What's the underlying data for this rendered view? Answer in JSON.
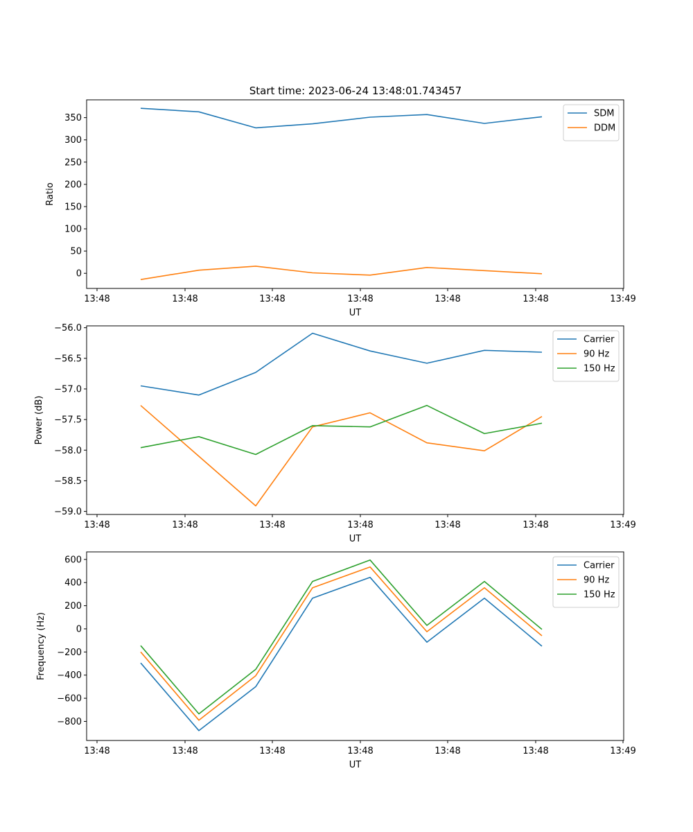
{
  "figure": {
    "title": "Start time: 2023-06-24 13:48:01.743457"
  },
  "chart_data": [
    {
      "type": "line",
      "title": "Start time: 2023-06-24 13:48:01.743457",
      "xlabel": "UT",
      "ylabel": "Ratio",
      "x_tick_labels": [
        "13:48",
        "13:48",
        "13:48",
        "13:48",
        "13:48",
        "13:48",
        "13:49"
      ],
      "y_ticks": [
        0,
        50,
        100,
        150,
        200,
        250,
        300,
        350
      ],
      "y_tick_labels": [
        "0",
        "50",
        "100",
        "150",
        "200",
        "250",
        "300",
        "350"
      ],
      "ylim": [
        -34,
        390
      ],
      "grid": false,
      "legend_position": "top-right",
      "series": [
        {
          "name": "SDM",
          "color": "#1f77b4",
          "values": [
            371,
            363,
            327,
            336,
            351,
            357,
            337,
            352
          ]
        },
        {
          "name": "DDM",
          "color": "#ff7f0e",
          "values": [
            -14,
            7,
            16,
            1,
            -4,
            13,
            6,
            -1
          ]
        }
      ]
    },
    {
      "type": "line",
      "title": "",
      "xlabel": "UT",
      "ylabel": "Power (dB)",
      "x_tick_labels": [
        "13:48",
        "13:48",
        "13:48",
        "13:48",
        "13:48",
        "13:48",
        "13:49"
      ],
      "y_ticks": [
        -59.0,
        -58.5,
        -58.0,
        -57.5,
        -57.0,
        -56.5,
        -56.0
      ],
      "y_tick_labels": [
        "−59.0",
        "−58.5",
        "−58.0",
        "−57.5",
        "−57.0",
        "−56.5",
        "−56.0"
      ],
      "ylim": [
        -59.05,
        -55.97
      ],
      "grid": false,
      "legend_position": "top-right",
      "series": [
        {
          "name": "Carrier",
          "color": "#1f77b4",
          "values": [
            -56.95,
            -57.1,
            -56.73,
            -56.09,
            -56.38,
            -56.58,
            -56.37,
            -56.4
          ]
        },
        {
          "name": "90 Hz",
          "color": "#ff7f0e",
          "values": [
            -57.27,
            -58.1,
            -58.91,
            -57.62,
            -57.39,
            -57.88,
            -58.01,
            -57.45
          ]
        },
        {
          "name": "150 Hz",
          "color": "#2ca02c",
          "values": [
            -57.96,
            -57.78,
            -58.07,
            -57.6,
            -57.62,
            -57.27,
            -57.73,
            -57.56
          ]
        }
      ]
    },
    {
      "type": "line",
      "title": "",
      "xlabel": "UT",
      "ylabel": "Frequency (Hz)",
      "x_tick_labels": [
        "13:48",
        "13:48",
        "13:48",
        "13:48",
        "13:48",
        "13:48",
        "13:49"
      ],
      "y_ticks": [
        -800,
        -600,
        -400,
        -200,
        0,
        200,
        400,
        600
      ],
      "y_tick_labels": [
        "−800",
        "−600",
        "−400",
        "−200",
        "0",
        "200",
        "400",
        "600"
      ],
      "ylim": [
        -965,
        665
      ],
      "grid": false,
      "legend_position": "top-right",
      "series": [
        {
          "name": "Carrier",
          "color": "#1f77b4",
          "values": [
            -295,
            -880,
            -500,
            265,
            445,
            -115,
            265,
            -150
          ]
        },
        {
          "name": "90 Hz",
          "color": "#ff7f0e",
          "values": [
            -200,
            -790,
            -405,
            355,
            535,
            -25,
            355,
            -60
          ]
        },
        {
          "name": "150 Hz",
          "color": "#2ca02c",
          "values": [
            -145,
            -735,
            -350,
            410,
            595,
            30,
            410,
            -5
          ]
        }
      ]
    }
  ]
}
